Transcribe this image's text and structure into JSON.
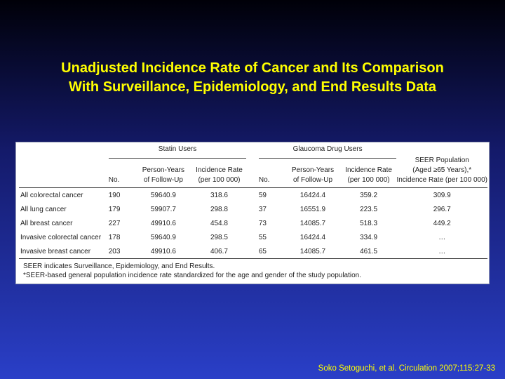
{
  "title": {
    "line1": "Unadjusted Incidence Rate of Cancer and Its Comparison",
    "line2": "With Surveillance, Epidemiology, and End Results Data"
  },
  "table": {
    "group_headers": {
      "statin": "Statin Users",
      "glaucoma": "Glaucoma Drug Users",
      "seer_line1": "SEER Population",
      "seer_line2": "(Aged ≥65 Years),*",
      "seer_line3": "Incidence Rate (per 100 000)"
    },
    "columns": {
      "no": "No.",
      "person_years_1": "Person-Years",
      "person_years_2": "of Follow-Up",
      "incidence_1": "Incidence Rate",
      "incidence_2": "(per 100 000)"
    },
    "rows": [
      {
        "label": "All colorectal cancer",
        "s_no": "190",
        "s_py": "59640.9",
        "s_ir": "318.6",
        "g_no": "59",
        "g_py": "16424.4",
        "g_ir": "359.2",
        "seer": "309.9"
      },
      {
        "label": "All lung cancer",
        "s_no": "179",
        "s_py": "59907.7",
        "s_ir": "298.8",
        "g_no": "37",
        "g_py": "16551.9",
        "g_ir": "223.5",
        "seer": "296.7"
      },
      {
        "label": "All breast cancer",
        "s_no": "227",
        "s_py": "49910.6",
        "s_ir": "454.8",
        "g_no": "73",
        "g_py": "14085.7",
        "g_ir": "518.3",
        "seer": "449.2"
      },
      {
        "label": "Invasive colorectal cancer",
        "s_no": "178",
        "s_py": "59640.9",
        "s_ir": "298.5",
        "g_no": "55",
        "g_py": "16424.4",
        "g_ir": "334.9",
        "seer": "…"
      },
      {
        "label": "Invasive breast cancer",
        "s_no": "203",
        "s_py": "49910.6",
        "s_ir": "406.7",
        "g_no": "65",
        "g_py": "14085.7",
        "g_ir": "461.5",
        "seer": "…"
      }
    ],
    "footnotes": [
      "SEER indicates Surveillance, Epidemiology, and End Results.",
      "*SEER-based general population incidence rate standardized for the age and gender of the study population."
    ]
  },
  "citation": "Soko Setoguchi, et al. Circulation 2007;115:27-33"
}
